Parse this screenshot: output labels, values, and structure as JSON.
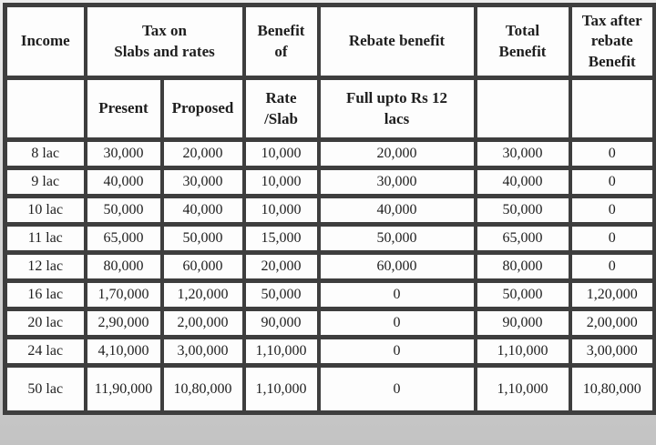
{
  "colors": {
    "border": "#3e3e3e",
    "cell_bg": "#fdfdfd",
    "text": "#1e1e1e",
    "page_bg": "#d9d9d9"
  },
  "table": {
    "header_row1": [
      "Income",
      "Tax on\nSlabs and rates",
      "Benefit\nof",
      "Rebate benefit",
      "Total\nBenefit",
      "Tax after\nrebate\nBenefit"
    ],
    "header_row2": [
      "",
      "Present",
      "Proposed",
      "Rate\n/Slab",
      "Full upto Rs 12\nlacs",
      "",
      ""
    ],
    "rows": [
      [
        "8 lac",
        "30,000",
        "20,000",
        "10,000",
        "20,000",
        "30,000",
        "0"
      ],
      [
        "9 lac",
        "40,000",
        "30,000",
        "10,000",
        "30,000",
        "40,000",
        "0"
      ],
      [
        "10 lac",
        "50,000",
        "40,000",
        "10,000",
        "40,000",
        "50,000",
        "0"
      ],
      [
        "11 lac",
        "65,000",
        "50,000",
        "15,000",
        "50,000",
        "65,000",
        "0"
      ],
      [
        "12 lac",
        "80,000",
        "60,000",
        "20,000",
        "60,000",
        "80,000",
        "0"
      ],
      [
        "16 lac",
        "1,70,000",
        "1,20,000",
        "50,000",
        "0",
        "50,000",
        "1,20,000"
      ],
      [
        "20 lac",
        "2,90,000",
        "2,00,000",
        "90,000",
        "0",
        "90,000",
        "2,00,000"
      ],
      [
        "24 lac",
        "4,10,000",
        "3,00,000",
        "1,10,000",
        "0",
        "1,10,000",
        "3,00,000"
      ],
      [
        "50 lac",
        "11,90,000",
        "10,80,000",
        "1,10,000",
        "0",
        "1,10,000",
        "10,80,000"
      ]
    ]
  },
  "chart_data": {
    "type": "table",
    "title": "Income tax: present vs proposed slabs, benefits and rebate",
    "columns": [
      "Income",
      "Tax on Slabs and rates - Present",
      "Tax on Slabs and rates - Proposed",
      "Benefit of Rate/Slab",
      "Rebate benefit (Full upto Rs 12 lacs)",
      "Total Benefit",
      "Tax after rebate Benefit"
    ],
    "rows": [
      [
        "8 lac",
        "30,000",
        "20,000",
        "10,000",
        "20,000",
        "30,000",
        "0"
      ],
      [
        "9 lac",
        "40,000",
        "30,000",
        "10,000",
        "30,000",
        "40,000",
        "0"
      ],
      [
        "10 lac",
        "50,000",
        "40,000",
        "10,000",
        "40,000",
        "50,000",
        "0"
      ],
      [
        "11 lac",
        "65,000",
        "50,000",
        "15,000",
        "50,000",
        "65,000",
        "0"
      ],
      [
        "12 lac",
        "80,000",
        "60,000",
        "20,000",
        "60,000",
        "80,000",
        "0"
      ],
      [
        "16 lac",
        "1,70,000",
        "1,20,000",
        "50,000",
        "0",
        "50,000",
        "1,20,000"
      ],
      [
        "20 lac",
        "2,90,000",
        "2,00,000",
        "90,000",
        "0",
        "90,000",
        "2,00,000"
      ],
      [
        "24 lac",
        "4,10,000",
        "3,00,000",
        "1,10,000",
        "0",
        "1,10,000",
        "3,00,000"
      ],
      [
        "50 lac",
        "11,90,000",
        "10,80,000",
        "1,10,000",
        "0",
        "1,10,000",
        "10,80,000"
      ]
    ]
  }
}
